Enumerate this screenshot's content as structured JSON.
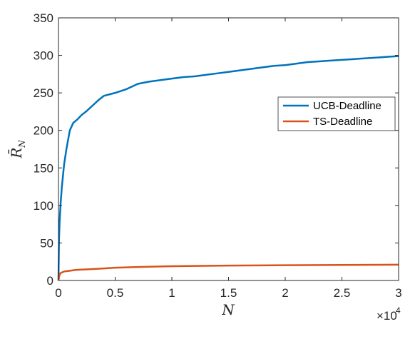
{
  "chart_data": {
    "type": "line",
    "xlabel": "N",
    "ylabel": "R̄_N",
    "ylabel_main": "R̄",
    "ylabel_sub": "N",
    "x_exponent_base": "×10",
    "x_exponent_power": "4",
    "xlim": [
      0,
      3
    ],
    "ylim": [
      0,
      350
    ],
    "x_ticks": [
      0,
      0.5,
      1,
      1.5,
      2,
      2.5,
      3
    ],
    "x_tick_labels": [
      "0",
      "0.5",
      "1",
      "1.5",
      "2",
      "2.5",
      "3"
    ],
    "y_ticks": [
      0,
      50,
      100,
      150,
      200,
      250,
      300,
      350
    ],
    "y_tick_labels": [
      "0",
      "50",
      "100",
      "150",
      "200",
      "250",
      "300",
      "350"
    ],
    "grid": false,
    "legend_position": "right",
    "series": [
      {
        "name": "UCB-Deadline",
        "color": "#0072BD",
        "x": [
          0,
          0.005,
          0.01,
          0.02,
          0.03,
          0.05,
          0.07,
          0.1,
          0.13,
          0.17,
          0.2,
          0.25,
          0.3,
          0.35,
          0.4,
          0.5,
          0.6,
          0.7,
          0.8,
          0.9,
          1.0,
          1.1,
          1.2,
          1.3,
          1.4,
          1.5,
          1.6,
          1.7,
          1.8,
          1.9,
          2.0,
          2.1,
          2.2,
          2.3,
          2.4,
          2.5,
          2.6,
          2.7,
          2.8,
          2.9,
          3.0
        ],
        "y": [
          0,
          55,
          78,
          105,
          125,
          155,
          175,
          200,
          210,
          215,
          220,
          226,
          233,
          240,
          246,
          250,
          255,
          262,
          265,
          267,
          269,
          271,
          272,
          274,
          276,
          278,
          280,
          282,
          284,
          286,
          287,
          289,
          291,
          292,
          293,
          294,
          295,
          296,
          297,
          298,
          299
        ]
      },
      {
        "name": "TS-Deadline",
        "color": "#D95319",
        "x": [
          0,
          0.01,
          0.02,
          0.05,
          0.1,
          0.15,
          0.2,
          0.3,
          0.4,
          0.5,
          0.7,
          1.0,
          1.5,
          2.0,
          2.5,
          3.0
        ],
        "y": [
          0,
          8,
          10,
          12,
          13,
          14,
          14.5,
          15.2,
          16,
          17,
          18,
          19,
          19.8,
          20.3,
          20.7,
          21
        ]
      }
    ]
  }
}
